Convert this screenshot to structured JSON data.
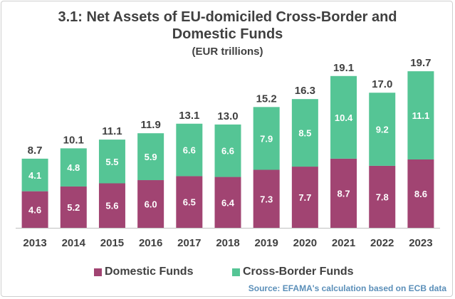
{
  "chart_data": {
    "type": "bar",
    "stacked": true,
    "title": "3.1: Net Assets of EU-domiciled Cross-Border and Domestic Funds",
    "subtitle": "(EUR trillions)",
    "categories": [
      "2013",
      "2014",
      "2015",
      "2016",
      "2017",
      "2018",
      "2019",
      "2020",
      "2021",
      "2022",
      "2023"
    ],
    "series": [
      {
        "name": "Domestic Funds",
        "color": "#a14472",
        "values": [
          4.6,
          5.2,
          5.6,
          6.0,
          6.5,
          6.4,
          7.3,
          7.7,
          8.7,
          7.8,
          8.6
        ]
      },
      {
        "name": "Cross-Border Funds",
        "color": "#55c595",
        "values": [
          4.1,
          4.8,
          5.5,
          5.9,
          6.6,
          6.6,
          7.9,
          8.5,
          10.4,
          9.2,
          11.1
        ]
      }
    ],
    "totals": [
      "8.7",
      "10.1",
      "11.1",
      "11.9",
      "13.1",
      "13.0",
      "15.2",
      "16.3",
      "19.1",
      "17.0",
      "19.7"
    ],
    "value_labels": {
      "domestic": [
        "4.6",
        "5.2",
        "5.6",
        "6.0",
        "6.5",
        "6.4",
        "7.3",
        "7.7",
        "8.7",
        "7.8",
        "8.6"
      ],
      "cross_border": [
        "4.1",
        "4.8",
        "5.5",
        "5.9",
        "6.6",
        "6.6",
        "7.9",
        "8.5",
        "10.4",
        "9.2",
        "11.1"
      ]
    },
    "ylim": [
      0,
      21.5
    ],
    "legend_position": "bottom"
  },
  "legend": {
    "domestic_label": "Domestic Funds",
    "cross_border_label": "Cross-Border Funds"
  },
  "source_text": "Source: EFAMA's calculation based on ECB data"
}
